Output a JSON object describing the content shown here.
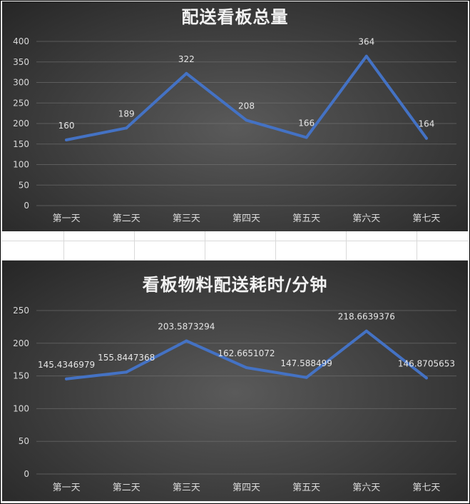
{
  "chart_data": [
    {
      "type": "line",
      "title": "配送看板总量",
      "categories": [
        "第一天",
        "第二天",
        "第三天",
        "第四天",
        "第五天",
        "第六天",
        "第七天"
      ],
      "values": [
        160,
        189,
        322,
        208,
        166,
        364,
        164
      ],
      "data_labels": [
        "160",
        "189",
        "322",
        "208",
        "166",
        "364",
        "164"
      ],
      "y_ticks": [
        "0",
        "50",
        "100",
        "150",
        "200",
        "250",
        "300",
        "350",
        "400"
      ],
      "ylim": [
        0,
        400
      ],
      "grid": true,
      "line_color": "#4472c4"
    },
    {
      "type": "line",
      "title": "看板物料配送耗时/分钟",
      "categories": [
        "第一天",
        "第二天",
        "第三天",
        "第四天",
        "第五天",
        "第六天",
        "第七天"
      ],
      "values": [
        145.4346979,
        155.8447368,
        203.5873294,
        162.6651072,
        147.588499,
        218.6639376,
        146.8705653
      ],
      "data_labels": [
        "145.4346979",
        "155.8447368",
        "203.5873294",
        "162.6651072",
        "147.588499",
        "218.6639376",
        "146.8705653"
      ],
      "y_ticks": [
        "0",
        "50",
        "100",
        "150",
        "200",
        "250"
      ],
      "ylim": [
        0,
        250
      ],
      "grid": true,
      "line_color": "#4472c4"
    }
  ]
}
